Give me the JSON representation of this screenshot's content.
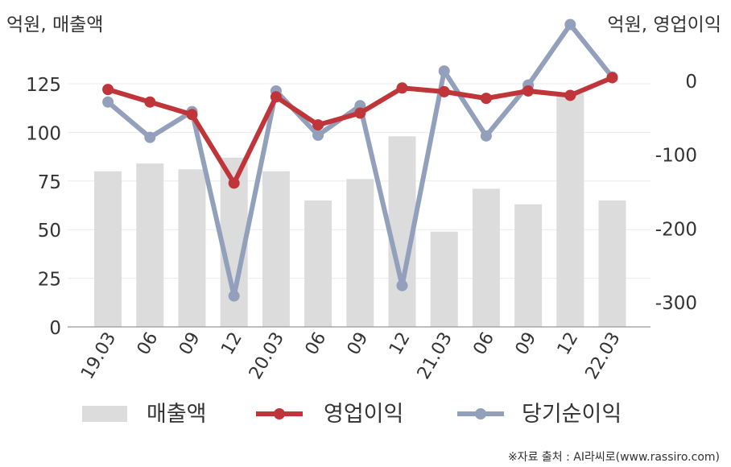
{
  "chart_data": {
    "type": "bar+line",
    "left_axis_title": "억원, 매출액",
    "right_axis_title": "억원, 영업이익",
    "categories": [
      "19.03",
      "06",
      "09",
      "12",
      "20.03",
      "06",
      "09",
      "12",
      "21.03",
      "06",
      "09",
      "12",
      "22.03"
    ],
    "left_axis": {
      "ticks": [
        0,
        25,
        50,
        75,
        100,
        125
      ],
      "ylim": [
        0,
        125
      ]
    },
    "right_axis": {
      "ticks": [
        0,
        -100,
        -200,
        -300
      ],
      "ylim": [
        -334,
        22
      ]
    },
    "grid": true,
    "series": [
      {
        "name": "매출액",
        "kind": "bar",
        "axis": "left",
        "color": "#dcdcdc",
        "values": [
          80,
          84,
          81,
          87,
          80,
          65,
          76,
          98,
          49,
          71,
          63,
          120,
          65
        ]
      },
      {
        "name": "영업이익",
        "kind": "line",
        "axis": "right",
        "color": "#c0353a",
        "values": [
          -12,
          -29,
          -46,
          -139,
          -22,
          -60,
          -44,
          -10,
          -15,
          -24,
          -14,
          -20,
          4
        ]
      },
      {
        "name": "당기순이익",
        "kind": "line",
        "axis": "right",
        "color": "#92a0bb",
        "values": [
          -29,
          -77,
          -42,
          -292,
          -14,
          -74,
          -34,
          -278,
          13,
          -75,
          -6,
          76,
          5
        ]
      }
    ],
    "legend_position": "bottom"
  },
  "source": "※자료 출처 : AI라씨로(www.rassiro.com)"
}
